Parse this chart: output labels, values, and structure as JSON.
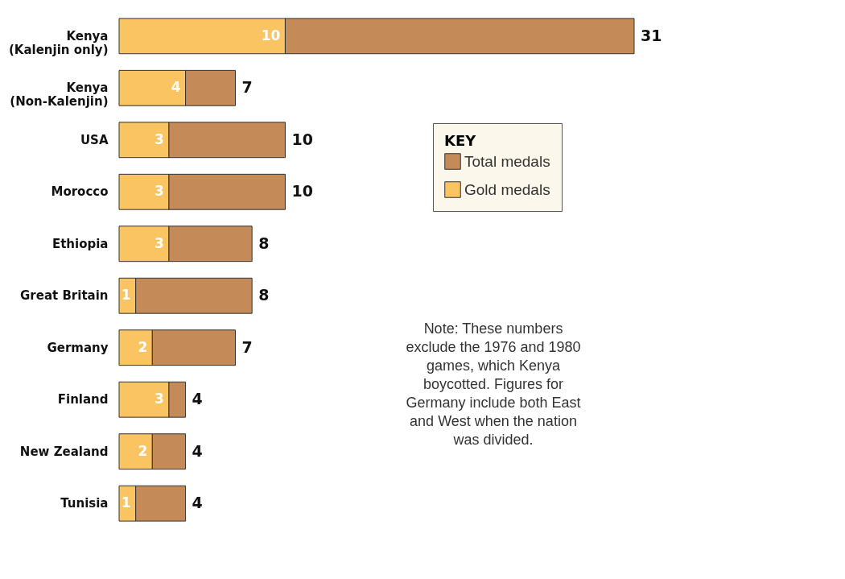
{
  "chart_data": {
    "type": "bar",
    "orientation": "horizontal",
    "stacked": true,
    "categories": [
      "Kenya\n(Kalenjin only)",
      "Kenya\n(Non-Kalenjin)",
      "USA",
      "Morocco",
      "Ethiopia",
      "Great Britain",
      "Germany",
      "Finland",
      "New Zealand",
      "Tunisia"
    ],
    "series": [
      {
        "name": "Gold medals",
        "color": "#fbc462",
        "values": [
          10,
          4,
          3,
          3,
          3,
          1,
          2,
          3,
          2,
          1
        ],
        "value_labels": [
          "10",
          "4",
          "3",
          "3",
          "3",
          "1",
          "2",
          "3",
          "2",
          "1"
        ]
      },
      {
        "name": "Total medals",
        "color": "#c48a58",
        "values": [
          21,
          3,
          7,
          7,
          5,
          7,
          5,
          1,
          2,
          3
        ]
      }
    ],
    "totals": [
      "31",
      "7",
      "10",
      "10",
      "8",
      "8",
      "7",
      "4",
      "4",
      "4"
    ],
    "xlim": [
      0,
      31
    ],
    "legend": "right",
    "legend_title": "KEY",
    "annotations": [
      "Note: These numbers exclude the 1976 and 1980 games, which Kenya boycotted. Figures for Germany include both East and West when the nation was divided."
    ]
  }
}
